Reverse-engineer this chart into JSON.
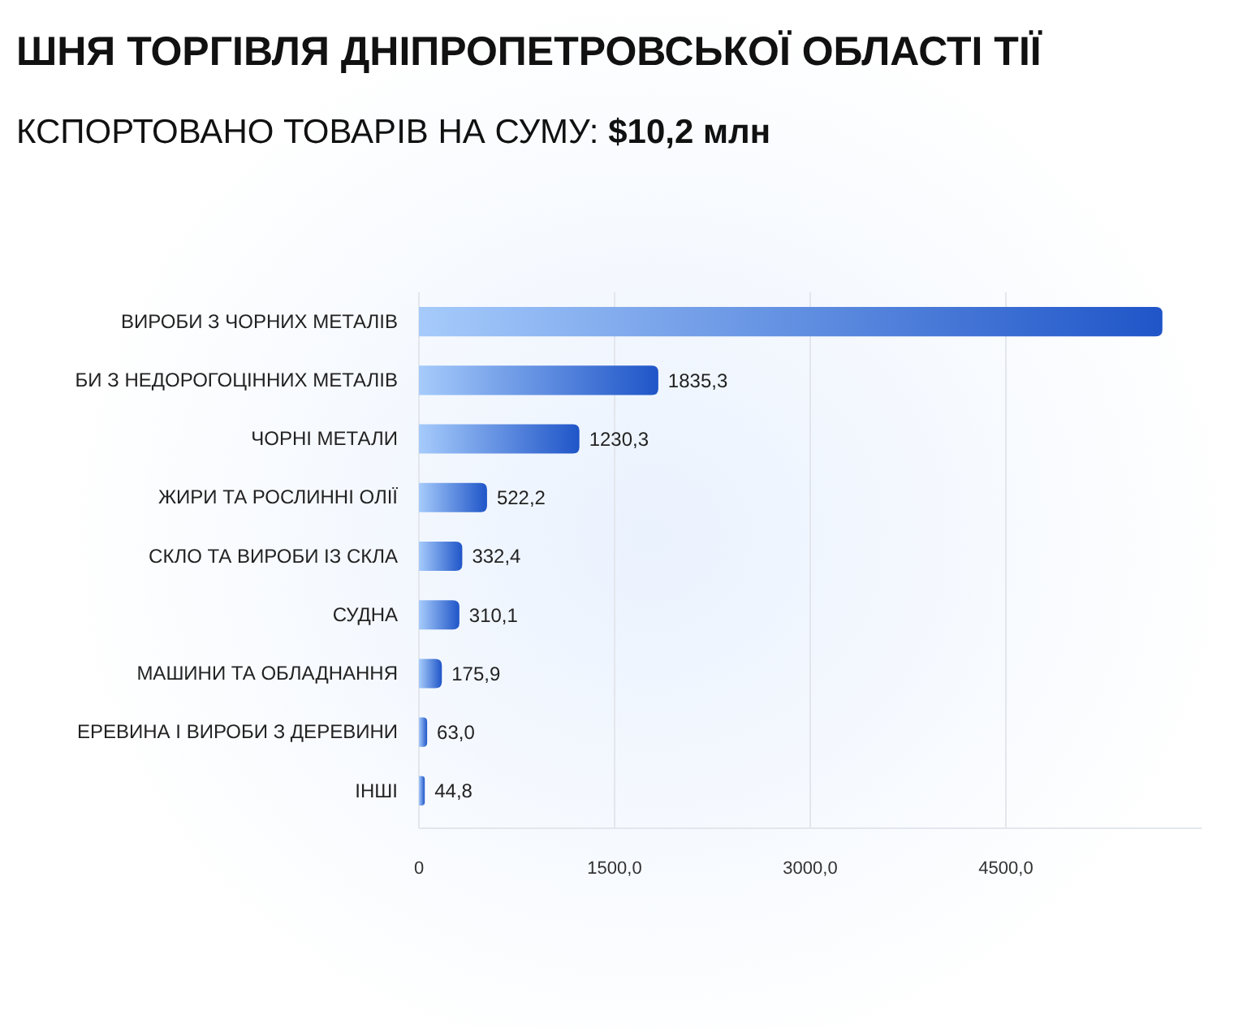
{
  "chart_data": {
    "type": "bar",
    "orientation": "horizontal",
    "title": "ШНЯ ТОРГІВЛЯ ДНІПРОПЕТРОВСЬКОЇ ОБЛАСТІ ТІЇ",
    "subtitle": "КСПОРТОВАНО ТОВАРІВ НА СУМУ: $10,2 млн",
    "categories": [
      "ВИРОБИ З ЧОРНИХ МЕТАЛІВ",
      "БИ З НЕДОРОГОЦІННИХ МЕТАЛІВ",
      "ЧОРНІ МЕТАЛИ",
      "ЖИРИ ТА РОСЛИННІ ОЛІЇ",
      "СКЛО ТА ВИРОБИ ІЗ СКЛА",
      "СУДНА",
      "МАШИНИ ТА ОБЛАДНАННЯ",
      "ЕРЕВИНА І ВИРОБИ З ДЕРЕВИНИ",
      "ІНШІ"
    ],
    "values": [
      5700,
      1835.3,
      1230.3,
      522.2,
      332.4,
      310.1,
      175.9,
      63.0,
      44.8
    ],
    "value_labels": [
      null,
      "1835,3",
      "1230,3",
      "522,2",
      "332,4",
      "310,1",
      "175,9",
      "63,0",
      "44,8"
    ],
    "color": "#1f55c8",
    "xlim": [
      0,
      6000
    ],
    "xticks": [
      0,
      {
        "value": 1500,
        "label": "1500,0"
      },
      {
        "value": 3000,
        "label": "3000,0"
      },
      {
        "value": 4500,
        "label": "4500,0"
      }
    ],
    "grid": "x"
  }
}
